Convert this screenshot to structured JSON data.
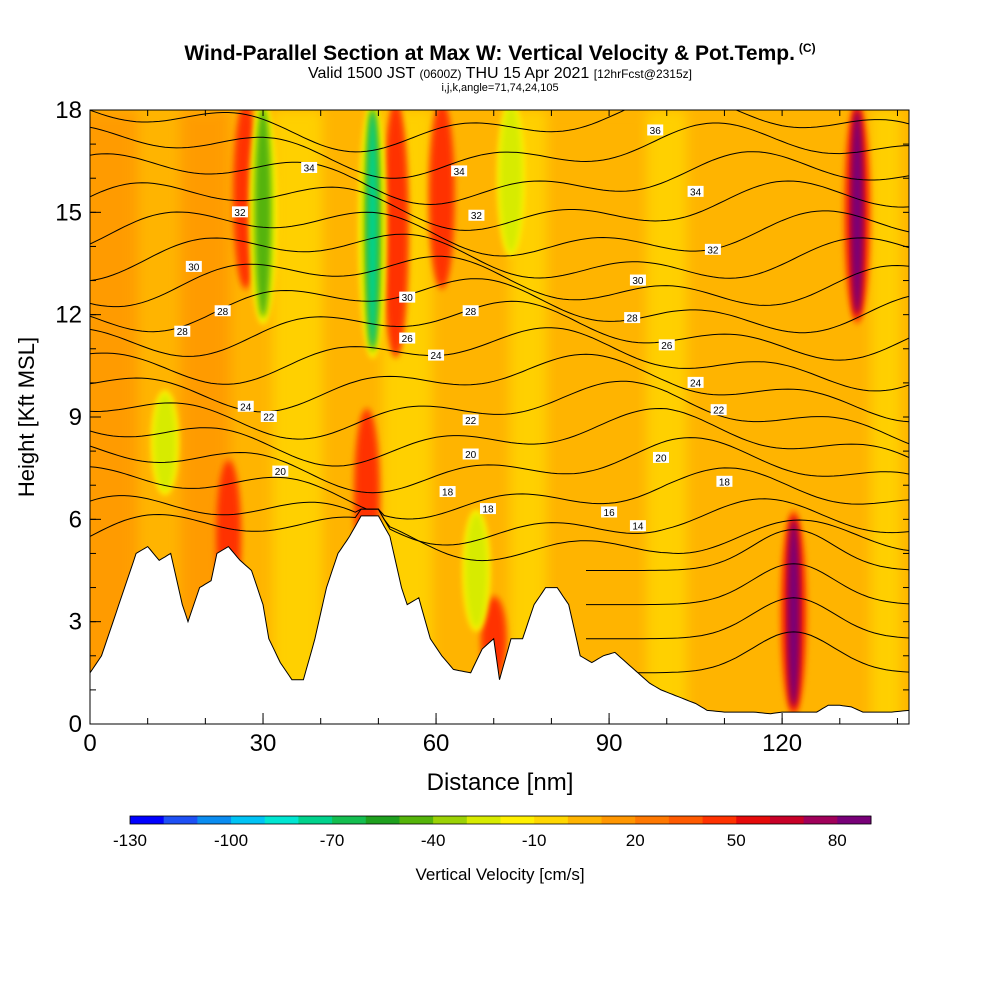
{
  "title": {
    "main": "Wind-Parallel Section at Max W: Vertical Velocity & Pot.Temp.",
    "unit": "(C)",
    "line2_prefix": "Valid 1500 JST",
    "line2_zulu": "(0600Z)",
    "line2_date": "THU 15 Apr 2021",
    "line2_fcst": "[12hrFcst@2315z]",
    "line3": "i,j,k,angle=71,74,24,105"
  },
  "chart_data": {
    "type": "heatmap",
    "xlabel": "Distance [nm]",
    "ylabel": "Height [Kft MSL]",
    "xlim": [
      0,
      142
    ],
    "ylim": [
      0,
      18
    ],
    "x_ticks": [
      0,
      30,
      60,
      90,
      120
    ],
    "y_ticks": [
      0,
      3,
      6,
      9,
      12,
      15,
      18
    ],
    "colorbar": {
      "label": "Vertical Velocity [cm/s]",
      "range": [
        -130,
        90
      ],
      "tick_labels": [
        -130,
        -100,
        -70,
        -40,
        -10,
        20,
        50,
        80
      ],
      "colors": [
        "#0000ff",
        "#1e50f5",
        "#0a8cf0",
        "#00c3f5",
        "#00e6d2",
        "#00d28c",
        "#14be50",
        "#1ea01e",
        "#55b40a",
        "#9bd205",
        "#d7eb00",
        "#fff000",
        "#ffd700",
        "#ffb400",
        "#ff9600",
        "#ff7800",
        "#ff5a00",
        "#ff3200",
        "#e60a0a",
        "#c80028",
        "#a0005a",
        "#780078"
      ]
    },
    "updrafts": [
      {
        "x": 24,
        "zmin": 3.5,
        "zmax": 7.5,
        "w": 55
      },
      {
        "x": 27,
        "zmin": 13,
        "zmax": 18,
        "w": 55
      },
      {
        "x": 48,
        "zmin": 4.5,
        "zmax": 9,
        "w": 60
      },
      {
        "x": 53,
        "zmin": 11,
        "zmax": 18,
        "w": 60
      },
      {
        "x": 61,
        "zmin": 13,
        "zmax": 18,
        "w": 45
      },
      {
        "x": 70,
        "zmin": 1.5,
        "zmax": 3.5,
        "w": 50
      },
      {
        "x": 122,
        "zmin": 0.5,
        "zmax": 6,
        "w": 85
      },
      {
        "x": 133,
        "zmin": 12,
        "zmax": 18,
        "w": 85
      }
    ],
    "downdrafts": [
      {
        "x": 13,
        "zmin": 7,
        "zmax": 9.5,
        "w": -40
      },
      {
        "x": 30,
        "zmin": 12,
        "zmax": 18,
        "w": -50
      },
      {
        "x": 49,
        "zmin": 11,
        "zmax": 18,
        "w": -75
      },
      {
        "x": 73,
        "zmin": 14,
        "zmax": 18,
        "w": -40
      },
      {
        "x": 67,
        "zmin": 3,
        "zmax": 6,
        "w": -30
      }
    ],
    "isentrope_labels": [
      {
        "text": "36",
        "x": 98,
        "z": 17.4
      },
      {
        "text": "34",
        "x": 38,
        "z": 16.3
      },
      {
        "text": "34",
        "x": 64,
        "z": 16.2
      },
      {
        "text": "34",
        "x": 105,
        "z": 15.6
      },
      {
        "text": "32",
        "x": 26,
        "z": 15.0
      },
      {
        "text": "32",
        "x": 67,
        "z": 14.9
      },
      {
        "text": "32",
        "x": 108,
        "z": 13.9
      },
      {
        "text": "30",
        "x": 18,
        "z": 13.4
      },
      {
        "text": "30",
        "x": 55,
        "z": 12.5
      },
      {
        "text": "30",
        "x": 95,
        "z": 13.0
      },
      {
        "text": "28",
        "x": 23,
        "z": 12.1
      },
      {
        "text": "28",
        "x": 66,
        "z": 12.1
      },
      {
        "text": "28",
        "x": 94,
        "z": 11.9
      },
      {
        "text": "28",
        "x": 16,
        "z": 11.5
      },
      {
        "text": "26",
        "x": 55,
        "z": 11.3
      },
      {
        "text": "26",
        "x": 100,
        "z": 11.1
      },
      {
        "text": "24",
        "x": 60,
        "z": 10.8
      },
      {
        "text": "24",
        "x": 27,
        "z": 9.3
      },
      {
        "text": "24",
        "x": 105,
        "z": 10.0
      },
      {
        "text": "22",
        "x": 31,
        "z": 9.0
      },
      {
        "text": "22",
        "x": 66,
        "z": 8.9
      },
      {
        "text": "22",
        "x": 109,
        "z": 9.2
      },
      {
        "text": "20",
        "x": 33,
        "z": 7.4
      },
      {
        "text": "20",
        "x": 66,
        "z": 7.9
      },
      {
        "text": "20",
        "x": 99,
        "z": 7.8
      },
      {
        "text": "18",
        "x": 62,
        "z": 6.8
      },
      {
        "text": "18",
        "x": 69,
        "z": 6.3
      },
      {
        "text": "18",
        "x": 110,
        "z": 7.1
      },
      {
        "text": "16",
        "x": 90,
        "z": 6.2
      },
      {
        "text": "14",
        "x": 95,
        "z": 5.8
      }
    ]
  }
}
